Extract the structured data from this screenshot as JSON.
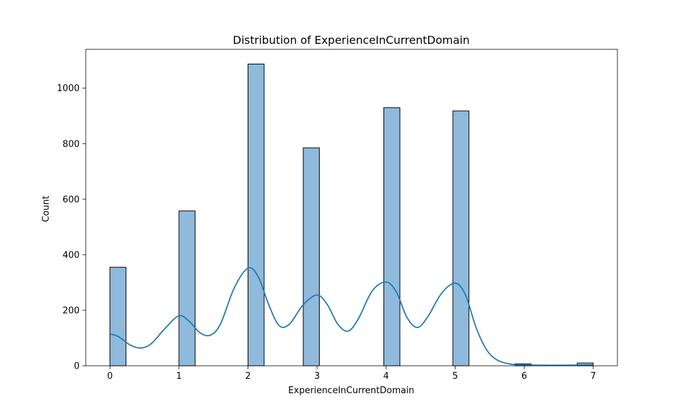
{
  "chart_data": {
    "type": "bar",
    "title": "Distribution of ExperienceInCurrentDomain",
    "xlabel": "ExperienceInCurrentDomain",
    "ylabel": "Count",
    "xlim": [
      -0.35,
      7.35
    ],
    "ylim": [
      0,
      1140
    ],
    "xticks": [
      "0",
      "1",
      "2",
      "3",
      "4",
      "5",
      "6",
      "7"
    ],
    "yticks": [
      "0",
      "200",
      "400",
      "600",
      "800",
      "1000"
    ],
    "grid": false,
    "legend": "none",
    "bar_color": "#8fbadb",
    "edge_color": "#000000",
    "kde_color": "#1f77b4",
    "bins": [
      {
        "x0": 0.0,
        "x1": 0.2333,
        "count": 355
      },
      {
        "x0": 1.0,
        "x1": 1.2333,
        "count": 558
      },
      {
        "x0": 2.0,
        "x1": 2.2333,
        "count": 1087
      },
      {
        "x0": 2.8,
        "x1": 3.0333,
        "count": 785
      },
      {
        "x0": 3.9667,
        "x1": 4.2,
        "count": 930
      },
      {
        "x0": 4.9667,
        "x1": 5.2,
        "count": 918
      },
      {
        "x0": 5.8667,
        "x1": 6.1,
        "count": 7
      },
      {
        "x0": 6.7667,
        "x1": 7.0,
        "count": 10
      }
    ],
    "kde": {
      "x": [
        0.0,
        0.1,
        0.2,
        0.3,
        0.45,
        0.6,
        0.8,
        1.0,
        1.15,
        1.3,
        1.45,
        1.6,
        1.8,
        2.0,
        2.15,
        2.3,
        2.45,
        2.6,
        2.8,
        3.0,
        3.15,
        3.3,
        3.45,
        3.6,
        3.8,
        4.0,
        4.15,
        4.3,
        4.45,
        4.6,
        4.8,
        5.0,
        5.15,
        5.3,
        5.45,
        5.6,
        5.8,
        6.0,
        6.3,
        6.6,
        7.0
      ],
      "y": [
        115,
        108,
        92,
        74,
        64,
        80,
        135,
        180,
        160,
        120,
        110,
        150,
        280,
        352,
        320,
        220,
        145,
        150,
        220,
        255,
        220,
        150,
        125,
        170,
        270,
        302,
        265,
        175,
        138,
        175,
        260,
        298,
        255,
        140,
        60,
        22,
        6,
        3,
        2,
        2,
        3
      ]
    }
  }
}
